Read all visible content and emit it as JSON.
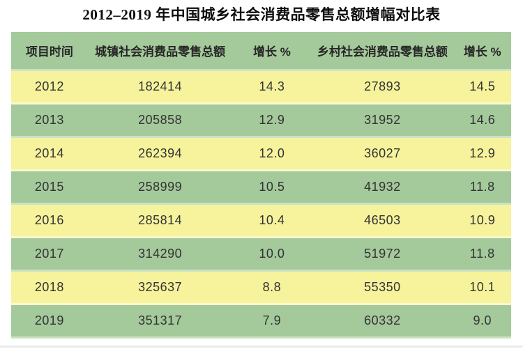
{
  "title": "2012–2019 年中国城乡社会消费品零售总额增幅对比表",
  "colors": {
    "header_green": "#a4c99b",
    "row_green": "#a4c99b",
    "row_yellow": "#f6f39c",
    "separator_green": "#cbe2c4",
    "separator_yellow": "#fbf8cf",
    "text": "#333333",
    "title_text": "#0d0d0d"
  },
  "table": {
    "columns": [
      "项目时间",
      "城镇社会消费品零售总额",
      "增长 %",
      "乡村社会消费品零售总额",
      "增长 %"
    ],
    "rows": [
      {
        "year": "2012",
        "urban_total": "182414",
        "urban_growth": "14.3",
        "rural_total": "27893",
        "rural_growth": "14.5"
      },
      {
        "year": "2013",
        "urban_total": "205858",
        "urban_growth": "12.9",
        "rural_total": "31952",
        "rural_growth": "14.6"
      },
      {
        "year": "2014",
        "urban_total": "262394",
        "urban_growth": "12.0",
        "rural_total": "36027",
        "rural_growth": "12.9"
      },
      {
        "year": "2015",
        "urban_total": "258999",
        "urban_growth": "10.5",
        "rural_total": "41932",
        "rural_growth": "11.8"
      },
      {
        "year": "2016",
        "urban_total": "285814",
        "urban_growth": "10.4",
        "rural_total": "46503",
        "rural_growth": "10.9"
      },
      {
        "year": "2017",
        "urban_total": "314290",
        "urban_growth": "10.0",
        "rural_total": "51972",
        "rural_growth": "11.8"
      },
      {
        "year": "2018",
        "urban_total": "325637",
        "urban_growth": "8.8",
        "rural_total": "55350",
        "rural_growth": "10.1"
      },
      {
        "year": "2019",
        "urban_total": "351317",
        "urban_growth": "7.9",
        "rural_total": "60332",
        "rural_growth": "9.0"
      }
    ]
  },
  "chart_data": {
    "type": "table",
    "title": "2012–2019 年中国城乡社会消费品零售总额增幅对比表",
    "columns": [
      "项目时间",
      "城镇社会消费品零售总额",
      "增长 %",
      "乡村社会消费品零售总额",
      "增长 %"
    ],
    "categories": [
      "2012",
      "2013",
      "2014",
      "2015",
      "2016",
      "2017",
      "2018",
      "2019"
    ],
    "series": [
      {
        "name": "城镇社会消费品零售总额",
        "values": [
          182414,
          205858,
          262394,
          258999,
          285814,
          314290,
          325637,
          351317
        ]
      },
      {
        "name": "城镇增长 %",
        "values": [
          14.3,
          12.9,
          12.0,
          10.5,
          10.4,
          10.0,
          8.8,
          7.9
        ]
      },
      {
        "name": "乡村社会消费品零售总额",
        "values": [
          27893,
          31952,
          36027,
          41932,
          46503,
          51972,
          55350,
          60332
        ]
      },
      {
        "name": "乡村增长 %",
        "values": [
          14.5,
          14.6,
          12.9,
          11.8,
          10.9,
          11.8,
          10.1,
          9.0
        ]
      }
    ],
    "layout": {
      "header_background": "green",
      "row_alternation": [
        "yellow",
        "green"
      ],
      "grid": false
    }
  }
}
